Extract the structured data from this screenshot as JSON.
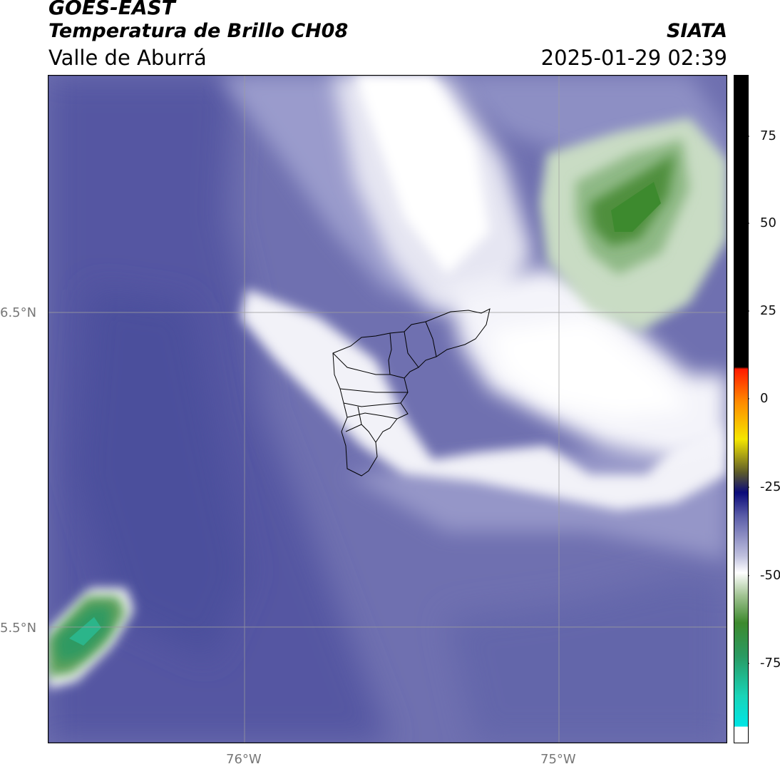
{
  "header": {
    "satellite": "GOES-EAST",
    "product": "Temperatura de Brillo CH08",
    "region": "Valle de Aburrá",
    "organization": "SIATA",
    "timestamp": "2025-01-29 02:39"
  },
  "map": {
    "lat_labels": [
      "6.5°N",
      "5.5°N"
    ],
    "lon_labels": [
      "76°W",
      "75°W"
    ]
  },
  "colorbar": {
    "ticks": [
      "75",
      "50",
      "25",
      "0",
      "-25",
      "-50",
      "-75"
    ],
    "colors": {
      "cold_green": "#3d8a2e",
      "cyan": "#19d4b8",
      "white": "#ffffff",
      "dark_blue": "#0b0b7a",
      "yellow": "#f5e600",
      "orange": "#ff8c00",
      "red": "#ff1a00",
      "black": "#000000",
      "background_purple": "#5d5fa7"
    }
  }
}
